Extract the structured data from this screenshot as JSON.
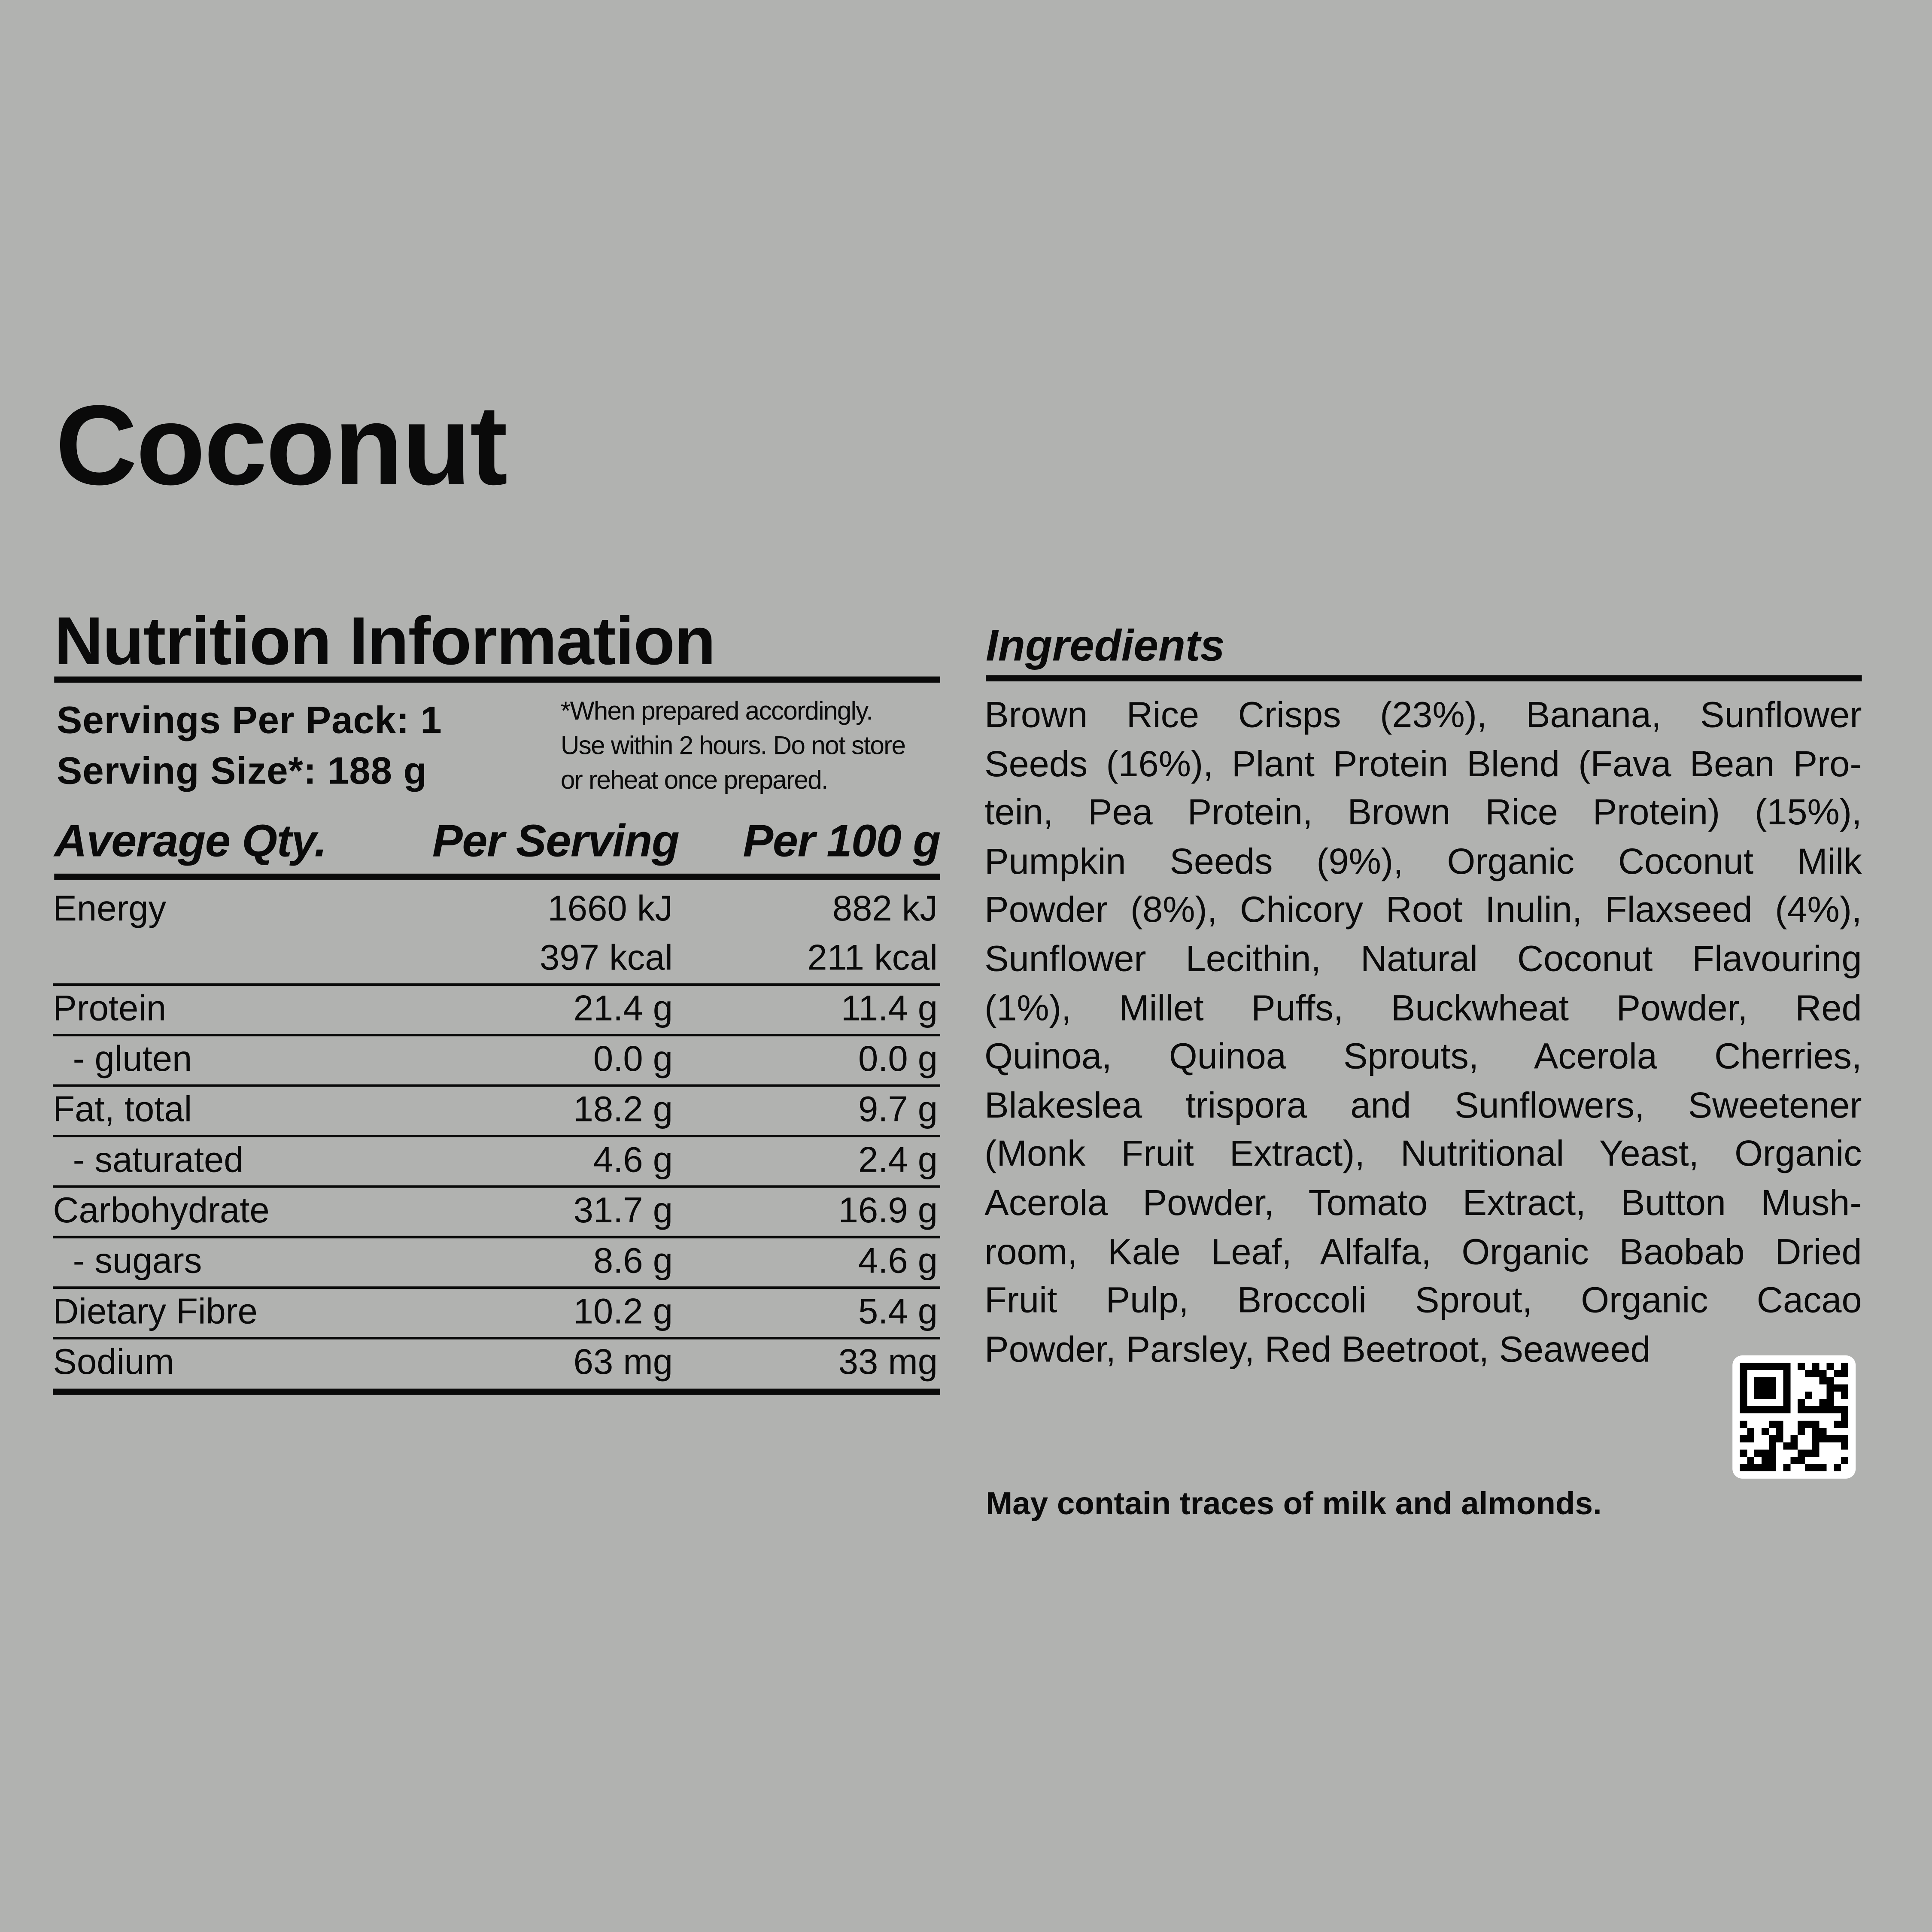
{
  "product": {
    "title": "Coconut"
  },
  "nutrition": {
    "title": "Nutrition Information",
    "servings_per_pack": "Servings Per Pack: 1",
    "serving_size": "Serving Size*: 188 g",
    "footnote": [
      "*When prepared accordingly.",
      "Use within 2 hours. Do not store",
      "or reheat once prepared."
    ],
    "headers": [
      "Average Qty.",
      "Per Serving",
      "Per 100 g"
    ],
    "rows": [
      {
        "label": "Energy",
        "per_serving": "1660 kJ",
        "per_100g": "882 kJ"
      },
      {
        "label": "",
        "per_serving": "397 kcal",
        "per_100g": "211 kcal"
      },
      {
        "label": "Protein",
        "per_serving": "21.4 g",
        "per_100g": "11.4 g"
      },
      {
        "label": "  - gluten",
        "per_serving": "0.0 g",
        "per_100g": "0.0 g"
      },
      {
        "label": "Fat, total",
        "per_serving": "18.2 g",
        "per_100g": "9.7 g"
      },
      {
        "label": "  - saturated",
        "per_serving": "4.6 g",
        "per_100g": "2.4 g"
      },
      {
        "label": "Carbohydrate",
        "per_serving": "31.7 g",
        "per_100g": "16.9 g"
      },
      {
        "label": "  - sugars",
        "per_serving": "8.6 g",
        "per_100g": "4.6 g"
      },
      {
        "label": "Dietary Fibre",
        "per_serving": "10.2 g",
        "per_100g": "5.4 g"
      },
      {
        "label": "Sodium",
        "per_serving": "63 mg",
        "per_100g": "33 mg"
      }
    ]
  },
  "ingredients": {
    "title": "Ingredients",
    "lines": [
      "Brown Rice Crisps (23%), Banana, Sunflower",
      "Seeds (16%), Plant Protein Blend (Fava Bean Pro-",
      "tein, Pea Protein, Brown Rice Protein) (15%),",
      "Pumpkin Seeds (9%), Organic Coconut Milk",
      "Powder (8%), Chicory Root Inulin, Flaxseed (4%),",
      "Sunflower Lecithin, Natural Coconut Flavouring",
      "(1%), Millet Puffs, Buckwheat Powder, Red",
      "Quinoa, Quinoa Sprouts, Acerola Cherries,",
      "Blakeslea trispora and Sunflowers, Sweetener",
      "(Monk Fruit Extract), Nutritional Yeast, Organic",
      "Acerola Powder, Tomato Extract, Button Mush-",
      "room, Kale Leaf, Alfalfa, Organic Baobab Dried",
      "Fruit Pulp, Broccoli Sprout, Organic Cacao",
      "Powder, Parsley, Red Beetroot, Seaweed"
    ],
    "allergen_statement": "May contain traces of milk and almonds."
  },
  "colors": {
    "background": "#b1b2b0",
    "text": "#0a0a0a",
    "qr_background": "#ffffff"
  },
  "icons": {
    "qr": "qr-code-icon"
  }
}
